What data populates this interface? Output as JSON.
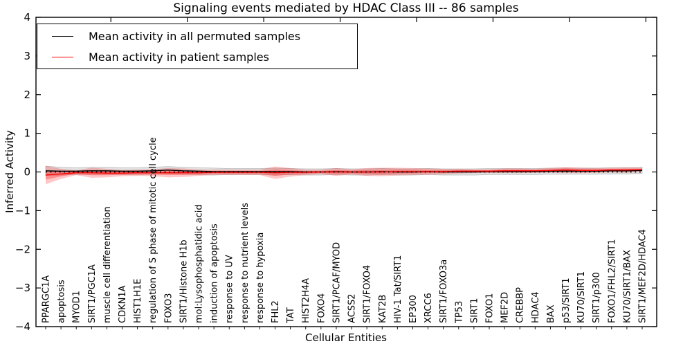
{
  "figure": {
    "title": "Signaling events mediated by HDAC Class III -- 86 samples",
    "xlabel": "Cellular Entities",
    "ylabel": "Inferred Activity"
  },
  "legend": {
    "position": "upper left",
    "items": [
      {
        "label": "Mean activity in all permuted samples",
        "color": "#000000"
      },
      {
        "label": "Mean activity in patient samples",
        "color": "#ff0000"
      }
    ]
  },
  "chart_data": {
    "type": "line",
    "title": "Signaling events mediated by HDAC Class III -- 86 samples",
    "xlabel": "Cellular Entities",
    "ylabel": "Inferred Activity",
    "ylim": [
      -4,
      4
    ],
    "yticks": [
      4,
      3,
      2,
      1,
      0,
      -1,
      -2,
      -3,
      -4
    ],
    "ytick_labels": [
      "4",
      "3",
      "2",
      "1",
      "0",
      "−1",
      "−2",
      "−3",
      "−4"
    ],
    "grid": false,
    "legend_position": "upper left",
    "zero_line": {
      "y": 0,
      "style": "dotted",
      "color": "#000000"
    },
    "categories": [
      "PPARGC1A",
      "apoptosis",
      "MYOD1",
      "SIRT1/PGC1A",
      "muscle cell differentiation",
      "CDKN1A",
      "HIST1H1E",
      "regulation of S phase of mitotic cell cycle",
      "FOXO3",
      "SIRT1/Histone H1b",
      "mol:Lysophosphatidic acid",
      "induction of apoptosis",
      "response to UV",
      "response to nutrient levels",
      "response to hypoxia",
      "FHL2",
      "TAT",
      "HIST2H4A",
      "FOXO4",
      "SIRT1/PCAF/MYOD",
      "ACSS2",
      "SIRT1/FOXO4",
      "KAT2B",
      "HIV-1 Tat/SIRT1",
      "EP300",
      "XRCC6",
      "SIRT1/FOXO3a",
      "TP53",
      "SIRT1",
      "FOXO1",
      "MEF2D",
      "CREBBP",
      "HDAC4",
      "BAX",
      "p53/SIRT1",
      "KU70/SIRT1",
      "SIRT1/p300",
      "FOXO1/FHL2/SIRT1",
      "KU70/SIRT1/BAX",
      "SIRT1/MEF2D/HDAC4"
    ],
    "series": [
      {
        "name": "Mean activity in all permuted samples",
        "color": "#000000",
        "band_color": "#c8c8c8",
        "values": [
          0.03,
          0.02,
          0.02,
          0.03,
          0.03,
          0.02,
          0.02,
          0.03,
          0.05,
          0.03,
          0.02,
          0.01,
          0.01,
          0.01,
          0.01,
          0.01,
          0.01,
          0.0,
          0.0,
          0.01,
          0.0,
          0.0,
          0.01,
          0.0,
          0.0,
          0.01,
          0.0,
          0.0,
          0.0,
          0.01,
          0.01,
          0.01,
          0.01,
          0.02,
          0.02,
          0.02,
          0.02,
          0.03,
          0.03,
          0.04
        ],
        "band_halfwidth": [
          0.12,
          0.1,
          0.09,
          0.09,
          0.09,
          0.09,
          0.09,
          0.09,
          0.09,
          0.09,
          0.09,
          0.09,
          0.08,
          0.08,
          0.08,
          0.09,
          0.08,
          0.08,
          0.08,
          0.08,
          0.08,
          0.08,
          0.08,
          0.08,
          0.08,
          0.08,
          0.08,
          0.08,
          0.08,
          0.08,
          0.08,
          0.08,
          0.08,
          0.08,
          0.08,
          0.08,
          0.08,
          0.08,
          0.08,
          0.08
        ]
      },
      {
        "name": "Mean activity in patient samples",
        "color": "#ff0000",
        "band_color": "#ff0000",
        "values": [
          -0.08,
          -0.05,
          -0.02,
          -0.02,
          -0.03,
          -0.03,
          -0.02,
          -0.02,
          -0.02,
          -0.02,
          -0.02,
          -0.01,
          -0.01,
          -0.01,
          -0.01,
          -0.02,
          -0.01,
          -0.01,
          0.0,
          0.0,
          0.0,
          0.0,
          0.0,
          0.01,
          0.01,
          0.01,
          0.01,
          0.02,
          0.02,
          0.02,
          0.03,
          0.03,
          0.03,
          0.04,
          0.05,
          0.04,
          0.04,
          0.05,
          0.05,
          0.06
        ],
        "band_halfwidth": [
          0.24,
          0.13,
          0.06,
          0.13,
          0.11,
          0.08,
          0.08,
          0.09,
          0.12,
          0.11,
          0.08,
          0.07,
          0.07,
          0.07,
          0.07,
          0.16,
          0.11,
          0.07,
          0.06,
          0.1,
          0.07,
          0.1,
          0.11,
          0.1,
          0.09,
          0.08,
          0.07,
          0.06,
          0.05,
          0.05,
          0.06,
          0.06,
          0.05,
          0.06,
          0.08,
          0.07,
          0.06,
          0.06,
          0.07,
          0.05
        ]
      }
    ]
  }
}
